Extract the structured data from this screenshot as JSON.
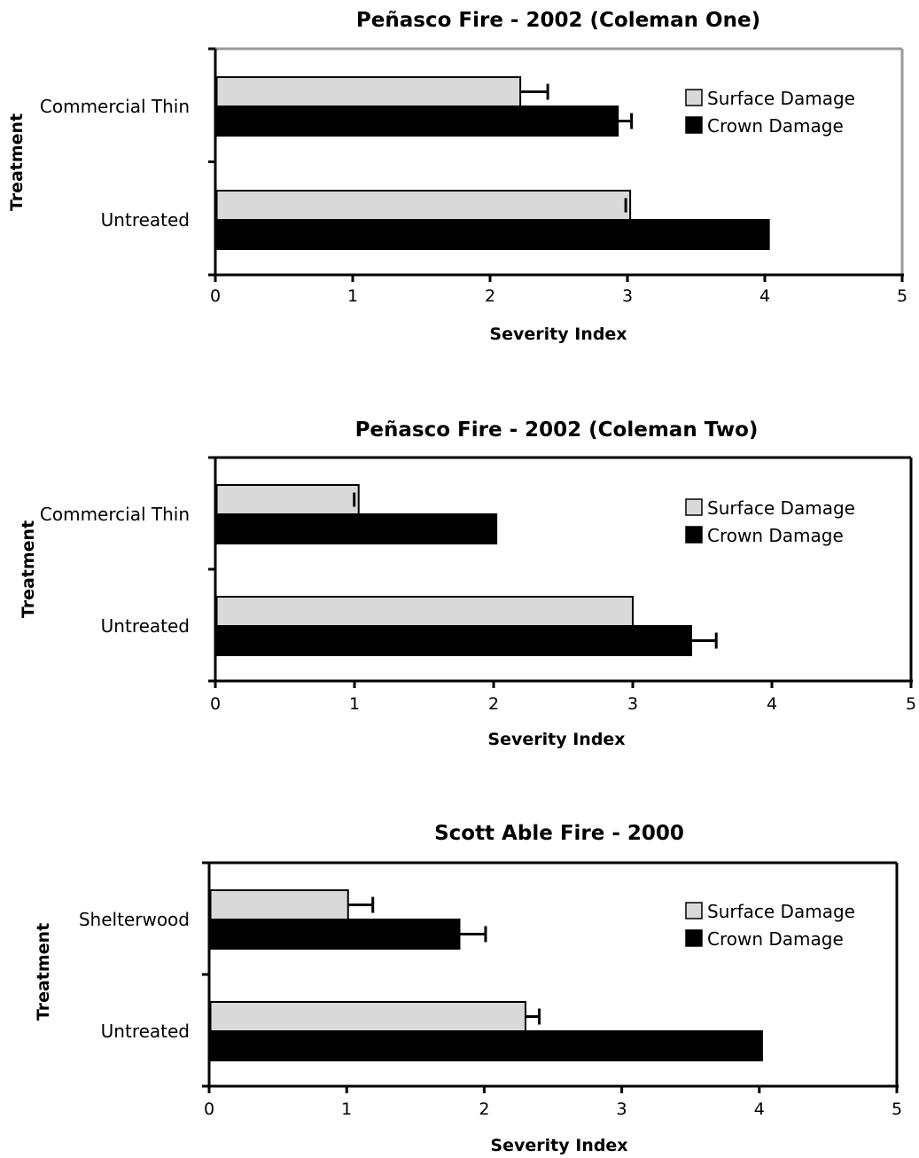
{
  "chart_data": [
    {
      "type": "bar",
      "orientation": "horizontal",
      "title": "Peñasco Fire - 2002 (Coleman One)",
      "xlabel": "Severity Index",
      "ylabel": "Treatment",
      "xlim": [
        0,
        5
      ],
      "xticks": [
        "0",
        "1",
        "2",
        "3",
        "4",
        "5"
      ],
      "categories": [
        "Commercial Thin",
        "Untreated"
      ],
      "series": [
        {
          "name": "Surface Damage",
          "color": "#d9d9d9",
          "values": [
            2.22,
            3.02
          ],
          "error": [
            0.2,
            0.0
          ]
        },
        {
          "name": "Crown Damage",
          "color": "#000000",
          "values": [
            2.93,
            4.03
          ],
          "error": [
            0.1,
            0.0
          ]
        }
      ],
      "legend_position": "top-right",
      "frame": "top and right border grey"
    },
    {
      "type": "bar",
      "orientation": "horizontal",
      "title": "Peñasco Fire - 2002 (Coleman Two)",
      "xlabel": "Severity Index",
      "ylabel": "Treatment",
      "xlim": [
        0,
        5
      ],
      "xticks": [
        "0",
        "1",
        "2",
        "3",
        "4",
        "5"
      ],
      "categories": [
        "Commercial Thin",
        "Untreated"
      ],
      "series": [
        {
          "name": "Surface Damage",
          "color": "#d9d9d9",
          "values": [
            1.03,
            3.0
          ],
          "error": [
            0.0,
            0.0
          ]
        },
        {
          "name": "Crown Damage",
          "color": "#000000",
          "values": [
            2.02,
            3.42
          ],
          "error": [
            0.0,
            0.18
          ]
        }
      ],
      "legend_position": "top-right",
      "frame": "full border black"
    },
    {
      "type": "bar",
      "orientation": "horizontal",
      "title": "Scott Able Fire - 2000",
      "xlabel": "Severity Index",
      "ylabel": "Treatment",
      "xlim": [
        0,
        5
      ],
      "xticks": [
        "0",
        "1",
        "2",
        "3",
        "4",
        "5"
      ],
      "categories": [
        "Shelterwood",
        "Untreated"
      ],
      "series": [
        {
          "name": "Surface Damage",
          "color": "#d9d9d9",
          "values": [
            1.01,
            2.3
          ],
          "error": [
            0.18,
            0.1
          ]
        },
        {
          "name": "Crown Damage",
          "color": "#000000",
          "values": [
            1.82,
            4.02
          ],
          "error": [
            0.19,
            0.0
          ]
        }
      ],
      "legend_position": "top-right",
      "frame": "full border black"
    }
  ]
}
